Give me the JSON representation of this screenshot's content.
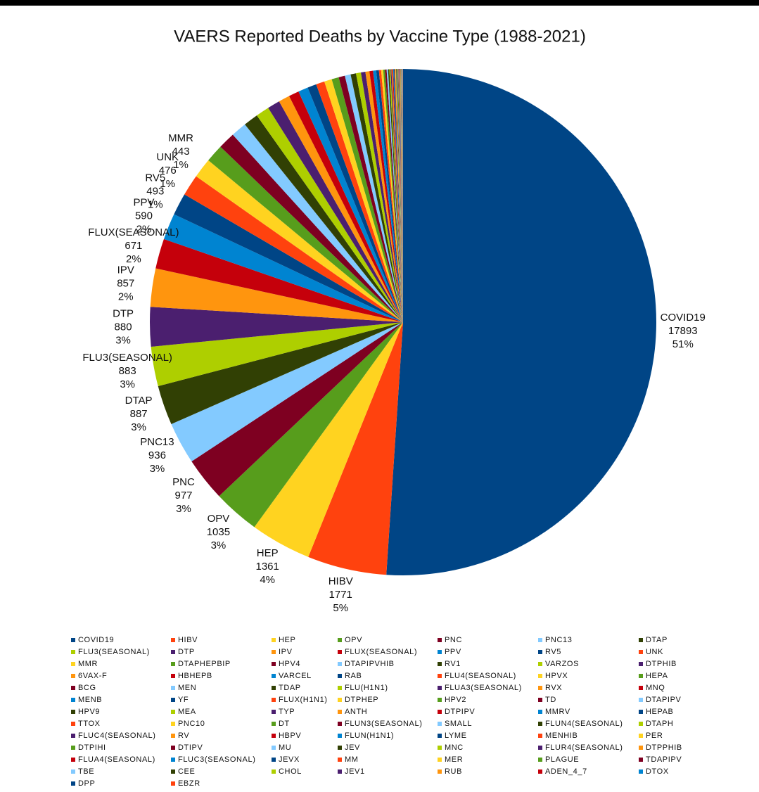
{
  "chart_data": {
    "type": "pie",
    "title": "VAERS Reported Deaths by Vaccine Type (1988-2021)",
    "categories": [
      "COVID19",
      "HIBV",
      "HEP",
      "OPV",
      "PNC",
      "PNC13",
      "DTAP",
      "FLU3(SEASONAL)",
      "DTP",
      "IPV",
      "FLUX(SEASONAL)",
      "PPV",
      "RV5",
      "UNK",
      "MMR",
      "DTAPHEPBIP",
      "HPV4",
      "DTAPIPVHIB",
      "RV1",
      "VARZOS",
      "DTPHIB",
      "6VAX-F",
      "HBHEPB",
      "VARCEL",
      "RAB",
      "FLU4(SEASONAL)",
      "HPVX",
      "HEPA",
      "BCG",
      "MEN",
      "TDAP",
      "FLU(H1N1)",
      "FLUA3(SEASONAL)",
      "RVX",
      "MNQ",
      "MENB",
      "YF",
      "FLUX(H1N1)",
      "DTPHEP",
      "HPV2",
      "TD",
      "DTAPIPV",
      "HPV9",
      "MEA",
      "TYP",
      "ANTH",
      "DTPIPV",
      "MMRV",
      "HEPAB",
      "TTOX",
      "PNC10",
      "DT",
      "FLUN3(SEASONAL)",
      "SMALL",
      "FLUN4(SEASONAL)",
      "DTAPH",
      "FLUC4(SEASONAL)",
      "RV",
      "HBPV",
      "FLUN(H1N1)",
      "LYME",
      "MENHIB",
      "PER",
      "DTPIHI",
      "DTIPV",
      "MU",
      "JEV",
      "MNC",
      "FLUR4(SEASONAL)",
      "DTPPHIB",
      "FLUA4(SEASONAL)",
      "FLUC3(SEASONAL)",
      "JEVX",
      "MM",
      "MER",
      "PLAGUE",
      "TDAPIPV",
      "TBE",
      "CEE",
      "CHOL",
      "JEV1",
      "RUB",
      "ADEN_4_7",
      "DTOX",
      "DPP",
      "EBZR"
    ],
    "values": [
      17893,
      1771,
      1361,
      1035,
      977,
      936,
      887,
      883,
      880,
      857,
      671,
      590,
      493,
      476,
      443,
      400,
      380,
      350,
      330,
      300,
      280,
      250,
      230,
      220,
      200,
      190,
      170,
      160,
      140,
      130,
      120,
      110,
      100,
      90,
      80,
      70,
      60,
      50,
      45,
      40,
      36,
      32,
      28,
      25,
      22,
      20,
      18,
      16,
      15,
      14,
      13,
      12,
      11,
      10,
      10,
      9,
      9,
      8,
      8,
      7,
      7,
      6,
      6,
      5,
      5,
      5,
      4,
      4,
      4,
      3,
      3,
      3,
      3,
      2,
      2,
      2,
      2,
      2,
      1,
      1,
      1,
      1,
      1,
      1,
      1,
      1
    ],
    "percent_labels": [
      "51%",
      "5%",
      "4%",
      "3%",
      "3%",
      "3%",
      "3%",
      "3%",
      "3%",
      "2%",
      "2%",
      "2%",
      "1%",
      "1%",
      "1%",
      null,
      null,
      null,
      null,
      null,
      null,
      null,
      null,
      null,
      null,
      null,
      null,
      null,
      null,
      null,
      null,
      null,
      null,
      null,
      null,
      null,
      null,
      null,
      null,
      null,
      null,
      null,
      null,
      null,
      null,
      null,
      null,
      null,
      null,
      null,
      null,
      null,
      null,
      null,
      null,
      null,
      null,
      null,
      null,
      null,
      null,
      null,
      null,
      null,
      null,
      null,
      null,
      null,
      null,
      null,
      null,
      null,
      null,
      null,
      null,
      null,
      null,
      null,
      null,
      null,
      null,
      null,
      null,
      null,
      null,
      null
    ],
    "palette": [
      "#004586",
      "#ff420e",
      "#ffd320",
      "#579d1c",
      "#7e0021",
      "#83caff",
      "#314004",
      "#aecf00",
      "#4b1f6f",
      "#ff950e",
      "#c5000b",
      "#0084d1"
    ],
    "legend": "bottom"
  }
}
